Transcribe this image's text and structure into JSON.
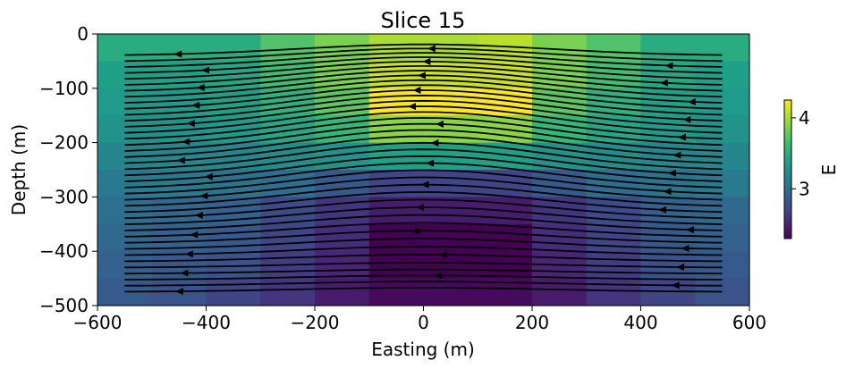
{
  "chart_data": {
    "type": "heatmap",
    "title": "Slice 15",
    "xlabel": "Easting (m)",
    "ylabel": "Depth (m)",
    "xlim": [
      -600,
      600
    ],
    "ylim": [
      -500,
      0
    ],
    "xticks": [
      -600,
      -400,
      -200,
      0,
      200,
      400,
      600
    ],
    "yticks": [
      0,
      -100,
      -200,
      -300,
      -400,
      -500
    ],
    "x_edges": [
      -600,
      -500,
      -400,
      -300,
      -200,
      -100,
      100,
      200,
      300,
      400,
      500,
      600
    ],
    "y_edges": [
      0,
      -50,
      -100,
      -150,
      -200,
      -250,
      -300,
      -350,
      -400,
      -450,
      -500
    ],
    "values": [
      [
        3.5,
        3.5,
        3.5,
        3.7,
        3.85,
        4.0,
        4.05,
        3.85,
        3.7,
        3.5,
        3.5
      ],
      [
        3.4,
        3.4,
        3.45,
        3.65,
        3.85,
        4.1,
        4.1,
        3.85,
        3.65,
        3.45,
        3.4
      ],
      [
        3.35,
        3.35,
        3.4,
        3.55,
        3.75,
        4.25,
        4.25,
        3.75,
        3.55,
        3.4,
        3.35
      ],
      [
        3.3,
        3.3,
        3.35,
        3.45,
        3.6,
        3.9,
        3.9,
        3.6,
        3.45,
        3.35,
        3.3
      ],
      [
        3.2,
        3.2,
        3.2,
        3.25,
        3.3,
        3.4,
        3.4,
        3.3,
        3.25,
        3.2,
        3.2
      ],
      [
        3.1,
        3.1,
        3.05,
        3.0,
        2.85,
        2.7,
        2.7,
        2.85,
        3.0,
        3.05,
        3.1
      ],
      [
        3.0,
        2.95,
        2.9,
        2.75,
        2.6,
        2.45,
        2.45,
        2.6,
        2.75,
        2.9,
        2.95
      ],
      [
        2.95,
        2.9,
        2.85,
        2.7,
        2.55,
        2.3,
        2.3,
        2.55,
        2.7,
        2.85,
        2.9
      ],
      [
        2.9,
        2.85,
        2.8,
        2.65,
        2.5,
        2.3,
        2.3,
        2.5,
        2.65,
        2.8,
        2.85
      ],
      [
        2.85,
        2.8,
        2.7,
        2.6,
        2.45,
        2.35,
        2.35,
        2.45,
        2.6,
        2.7,
        2.8
      ]
    ],
    "colorbar": {
      "label": "E",
      "range": [
        2.3,
        4.25
      ],
      "ticks": [
        3,
        4
      ],
      "colormap": "viridis"
    },
    "streamlines": {
      "count": 40,
      "x_range": [
        -550,
        550
      ],
      "y_range": [
        -40,
        -475
      ],
      "direction": "westward",
      "color": "#000000"
    },
    "grid": false
  }
}
